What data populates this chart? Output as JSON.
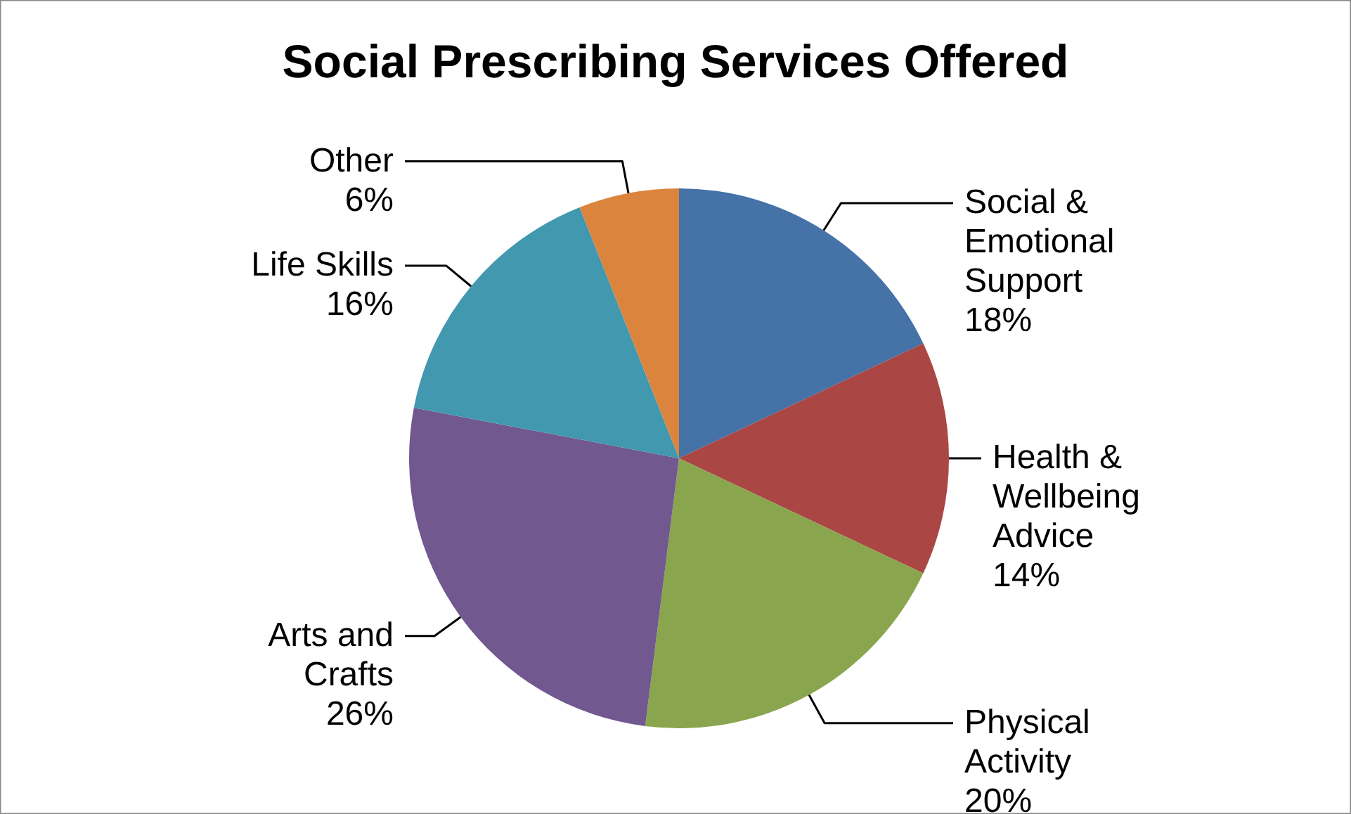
{
  "chart_data": {
    "type": "pie",
    "title": "Social Prescribing Services Offered",
    "categories": [
      "Social & Emotional Support",
      "Health & Wellbeing Advice",
      "Physical Activity",
      "Arts and Crafts",
      "Life Skills",
      "Other"
    ],
    "values": [
      18,
      14,
      20,
      26,
      16,
      6
    ],
    "value_labels": [
      "18%",
      "14%",
      "20%",
      "26%",
      "16%",
      "6%"
    ],
    "colors": [
      "#4572a7",
      "#aa4643",
      "#89a54e",
      "#71588f",
      "#4198af",
      "#db843d"
    ]
  }
}
